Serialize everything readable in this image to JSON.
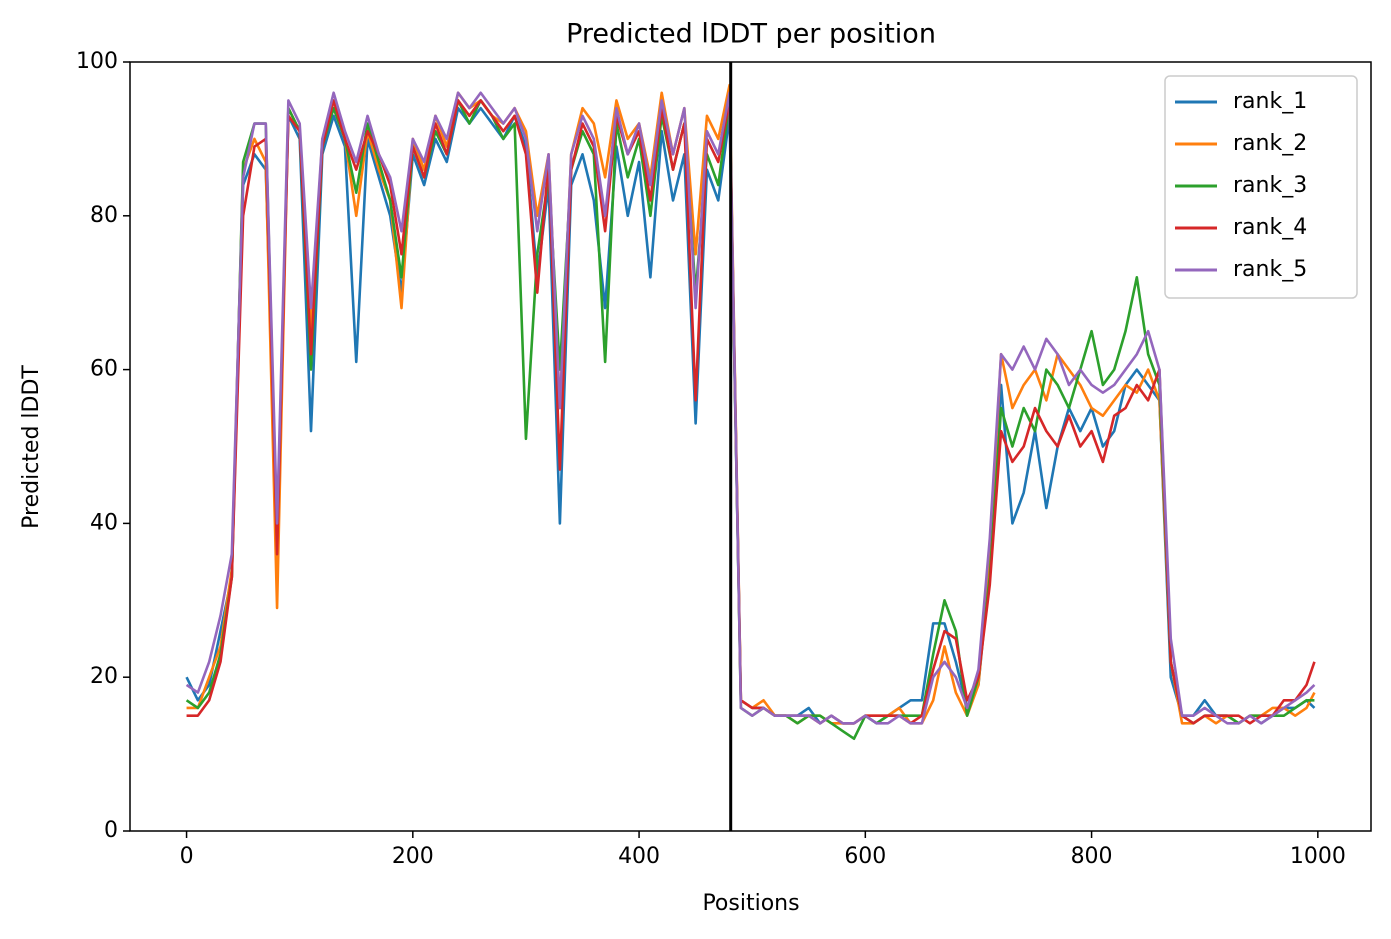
{
  "chart_data": {
    "type": "line",
    "title": "Predicted lDDT per position",
    "xlabel": "Positions",
    "ylabel": "Predicted lDDT",
    "x": [
      0,
      10,
      20,
      30,
      40,
      50,
      60,
      70,
      80,
      90,
      100,
      110,
      120,
      130,
      140,
      150,
      160,
      170,
      180,
      190,
      200,
      210,
      220,
      230,
      240,
      250,
      260,
      270,
      280,
      290,
      300,
      310,
      320,
      330,
      340,
      350,
      360,
      370,
      380,
      390,
      400,
      410,
      420,
      430,
      440,
      450,
      460,
      470,
      480,
      490,
      500,
      510,
      520,
      530,
      540,
      550,
      560,
      570,
      580,
      590,
      600,
      610,
      620,
      630,
      640,
      650,
      660,
      670,
      680,
      690,
      700,
      710,
      720,
      730,
      740,
      750,
      760,
      770,
      780,
      790,
      800,
      810,
      820,
      830,
      840,
      850,
      860,
      870,
      880,
      890,
      900,
      910,
      920,
      930,
      940,
      950,
      960,
      970,
      980,
      990,
      997
    ],
    "series": [
      {
        "name": "rank_1",
        "color": "#1f77b4",
        "values": [
          20,
          17,
          19,
          26,
          33,
          84,
          88,
          86,
          38,
          93,
          90,
          52,
          88,
          93,
          89,
          61,
          90,
          85,
          80,
          70,
          88,
          84,
          90,
          87,
          94,
          92,
          94,
          92,
          90,
          93,
          89,
          72,
          84,
          40,
          84,
          88,
          82,
          68,
          89,
          80,
          87,
          72,
          91,
          82,
          88,
          53,
          86,
          82,
          93,
          17,
          16,
          16,
          15,
          15,
          15,
          16,
          14,
          15,
          14,
          14,
          15,
          14,
          15,
          16,
          17,
          17,
          27,
          27,
          22,
          16,
          19,
          34,
          58,
          40,
          44,
          52,
          42,
          50,
          55,
          52,
          55,
          50,
          52,
          58,
          60,
          58,
          56,
          20,
          15,
          15,
          17,
          15,
          15,
          14,
          15,
          14,
          15,
          16,
          16,
          17,
          16
        ]
      },
      {
        "name": "rank_2",
        "color": "#ff7f0e",
        "values": [
          16,
          16,
          20,
          24,
          34,
          86,
          90,
          87,
          29,
          94,
          91,
          65,
          90,
          94,
          90,
          80,
          91,
          86,
          82,
          68,
          90,
          86,
          93,
          89,
          96,
          94,
          95,
          93,
          92,
          94,
          91,
          80,
          88,
          55,
          88,
          94,
          92,
          85,
          95,
          90,
          92,
          85,
          96,
          88,
          94,
          75,
          93,
          90,
          97,
          17,
          16,
          17,
          15,
          15,
          14,
          15,
          15,
          14,
          14,
          14,
          15,
          15,
          15,
          16,
          14,
          14,
          17,
          24,
          18,
          15,
          19,
          35,
          62,
          55,
          58,
          60,
          56,
          62,
          60,
          58,
          55,
          54,
          56,
          58,
          57,
          60,
          56,
          22,
          14,
          14,
          15,
          14,
          15,
          14,
          15,
          15,
          16,
          16,
          15,
          16,
          18
        ]
      },
      {
        "name": "rank_3",
        "color": "#2ca02c",
        "values": [
          17,
          16,
          18,
          23,
          33,
          87,
          92,
          92,
          37,
          94,
          91,
          60,
          89,
          94,
          90,
          83,
          92,
          87,
          82,
          72,
          89,
          85,
          91,
          88,
          95,
          92,
          95,
          93,
          90,
          92,
          51,
          75,
          85,
          60,
          86,
          91,
          88,
          61,
          92,
          85,
          90,
          80,
          93,
          86,
          92,
          70,
          88,
          84,
          95,
          16,
          15,
          16,
          15,
          15,
          14,
          15,
          15,
          14,
          13,
          12,
          15,
          14,
          15,
          15,
          15,
          15,
          23,
          30,
          26,
          15,
          20,
          33,
          55,
          50,
          55,
          52,
          60,
          58,
          55,
          60,
          65,
          58,
          60,
          65,
          72,
          62,
          58,
          22,
          15,
          14,
          15,
          15,
          15,
          14,
          15,
          15,
          15,
          15,
          16,
          17,
          17
        ]
      },
      {
        "name": "rank_4",
        "color": "#d62728",
        "values": [
          15,
          15,
          17,
          22,
          33,
          80,
          89,
          90,
          36,
          93,
          91,
          62,
          89,
          95,
          90,
          86,
          91,
          88,
          84,
          75,
          89,
          85,
          92,
          88,
          95,
          93,
          95,
          93,
          91,
          93,
          88,
          70,
          87,
          47,
          86,
          92,
          89,
          78,
          93,
          88,
          91,
          82,
          94,
          86,
          92,
          56,
          90,
          87,
          95,
          17,
          16,
          16,
          15,
          15,
          15,
          15,
          14,
          15,
          14,
          14,
          15,
          15,
          15,
          15,
          14,
          15,
          21,
          26,
          25,
          17,
          20,
          32,
          52,
          48,
          50,
          55,
          52,
          50,
          54,
          50,
          52,
          48,
          54,
          55,
          58,
          56,
          60,
          22,
          15,
          14,
          15,
          15,
          15,
          15,
          14,
          15,
          15,
          17,
          17,
          19,
          22
        ]
      },
      {
        "name": "rank_5",
        "color": "#9467bd",
        "values": [
          19,
          18,
          22,
          28,
          36,
          85,
          92,
          92,
          40,
          95,
          92,
          68,
          90,
          96,
          91,
          87,
          93,
          88,
          85,
          78,
          90,
          87,
          93,
          90,
          96,
          94,
          96,
          94,
          92,
          94,
          90,
          78,
          88,
          55,
          88,
          93,
          90,
          80,
          94,
          88,
          92,
          84,
          95,
          88,
          94,
          68,
          91,
          88,
          96,
          16,
          15,
          16,
          15,
          15,
          15,
          15,
          14,
          15,
          14,
          14,
          15,
          14,
          14,
          15,
          14,
          14,
          20,
          22,
          20,
          16,
          21,
          38,
          62,
          60,
          63,
          60,
          64,
          62,
          58,
          60,
          58,
          57,
          58,
          60,
          62,
          65,
          60,
          25,
          15,
          15,
          16,
          15,
          14,
          14,
          15,
          14,
          15,
          16,
          17,
          18,
          19
        ]
      }
    ],
    "vlines": [
      481
    ],
    "vline_color": "#000000",
    "xlim": [
      -50,
      1047
    ],
    "ylim": [
      0,
      100
    ],
    "xticks": [
      0,
      200,
      400,
      600,
      800,
      1000
    ],
    "yticks": [
      0,
      20,
      40,
      60,
      80,
      100
    ],
    "legend": "upper right",
    "grid": false
  }
}
